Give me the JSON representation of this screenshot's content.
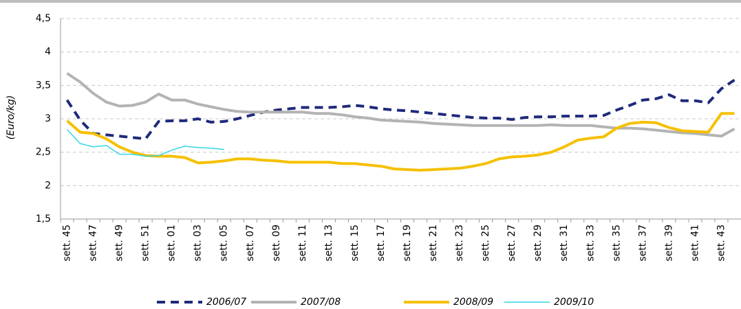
{
  "chart_data": {
    "type": "line",
    "y_label": "(Euro/kg)",
    "categories": [
      "sett. 45",
      null,
      "sett. 47",
      null,
      "sett. 49",
      null,
      "sett. 51",
      null,
      "sett. 01",
      null,
      "sett. 03",
      null,
      "sett. 05",
      null,
      "sett. 07",
      null,
      "sett. 09",
      null,
      "sett. 11",
      null,
      "sett. 13",
      null,
      "sett. 15",
      null,
      "sett. 17",
      null,
      "sett. 19",
      null,
      "sett. 21",
      null,
      "sett. 23",
      null,
      "sett. 25",
      null,
      "sett. 27",
      null,
      "sett. 29",
      null,
      "sett. 31",
      null,
      "sett. 33",
      null,
      "sett. 35",
      null,
      "sett. 37",
      null,
      "sett. 39",
      null,
      "sett. 41",
      null,
      "sett. 43",
      null
    ],
    "ylim": [
      1.5,
      4.5
    ],
    "yticks": [
      {
        "value": 1.5,
        "label": "1,5"
      },
      2,
      {
        "value": 2.5,
        "label": "2,5"
      },
      3,
      {
        "value": 3.5,
        "label": "3,5"
      },
      4,
      {
        "value": 4.5,
        "label": "4,5"
      }
    ],
    "grid": true,
    "legend": "bottom",
    "series": [
      {
        "name": "2006/07",
        "color": "#1f2a7a",
        "style": "dashed",
        "values": [
          3.28,
          2.98,
          2.78,
          2.76,
          2.74,
          2.72,
          2.7,
          2.96,
          2.97,
          2.97,
          3.0,
          2.95,
          2.96,
          3.0,
          3.05,
          3.1,
          3.13,
          3.15,
          3.17,
          3.17,
          3.17,
          3.18,
          3.2,
          3.18,
          3.15,
          3.13,
          3.12,
          3.1,
          3.08,
          3.06,
          3.04,
          3.02,
          3.01,
          3.01,
          2.99,
          3.02,
          3.03,
          3.03,
          3.04,
          3.04,
          3.04,
          3.05,
          3.13,
          3.2,
          3.28,
          3.3,
          3.36,
          3.27,
          3.27,
          3.24,
          3.45,
          3.58
        ]
      },
      {
        "name": "2007/08",
        "color": "#b3b3b3",
        "style": "solid",
        "values": [
          3.68,
          3.55,
          3.38,
          3.25,
          3.19,
          3.2,
          3.25,
          3.37,
          3.28,
          3.28,
          3.22,
          3.18,
          3.14,
          3.11,
          3.1,
          3.1,
          3.1,
          3.1,
          3.1,
          3.08,
          3.08,
          3.06,
          3.03,
          3.01,
          2.98,
          2.97,
          2.96,
          2.95,
          2.93,
          2.92,
          2.91,
          2.9,
          2.9,
          2.9,
          2.9,
          2.9,
          2.9,
          2.91,
          2.9,
          2.9,
          2.9,
          2.88,
          2.86,
          2.86,
          2.85,
          2.83,
          2.81,
          2.79,
          2.78,
          2.76,
          2.74,
          2.85
        ]
      },
      {
        "name": "2008/09",
        "color": "#f5c000",
        "style": "solid",
        "values": [
          2.97,
          2.8,
          2.78,
          2.7,
          2.58,
          2.5,
          2.45,
          2.44,
          2.44,
          2.42,
          2.34,
          2.35,
          2.37,
          2.4,
          2.4,
          2.38,
          2.37,
          2.35,
          2.35,
          2.35,
          2.35,
          2.33,
          2.33,
          2.31,
          2.29,
          2.25,
          2.24,
          2.23,
          2.24,
          2.25,
          2.26,
          2.29,
          2.33,
          2.4,
          2.43,
          2.44,
          2.46,
          2.5,
          2.58,
          2.68,
          2.71,
          2.73,
          2.86,
          2.93,
          2.95,
          2.94,
          2.87,
          2.82,
          2.81,
          2.8,
          3.08,
          3.08
        ]
      },
      {
        "name": "2009/10",
        "color": "#33d6e6",
        "style": "thin",
        "values": [
          2.84,
          2.63,
          2.58,
          2.6,
          2.47,
          2.47,
          2.44,
          2.45,
          2.53,
          2.59,
          2.57,
          2.56,
          2.54,
          null,
          null,
          null,
          null,
          null,
          null,
          null,
          null,
          null,
          null,
          null,
          null,
          null,
          null,
          null,
          null,
          null,
          null,
          null,
          null,
          null,
          null,
          null,
          null,
          null,
          null,
          null,
          null,
          null,
          null,
          null,
          null,
          null,
          null,
          null,
          null,
          null,
          null,
          null
        ]
      }
    ]
  }
}
